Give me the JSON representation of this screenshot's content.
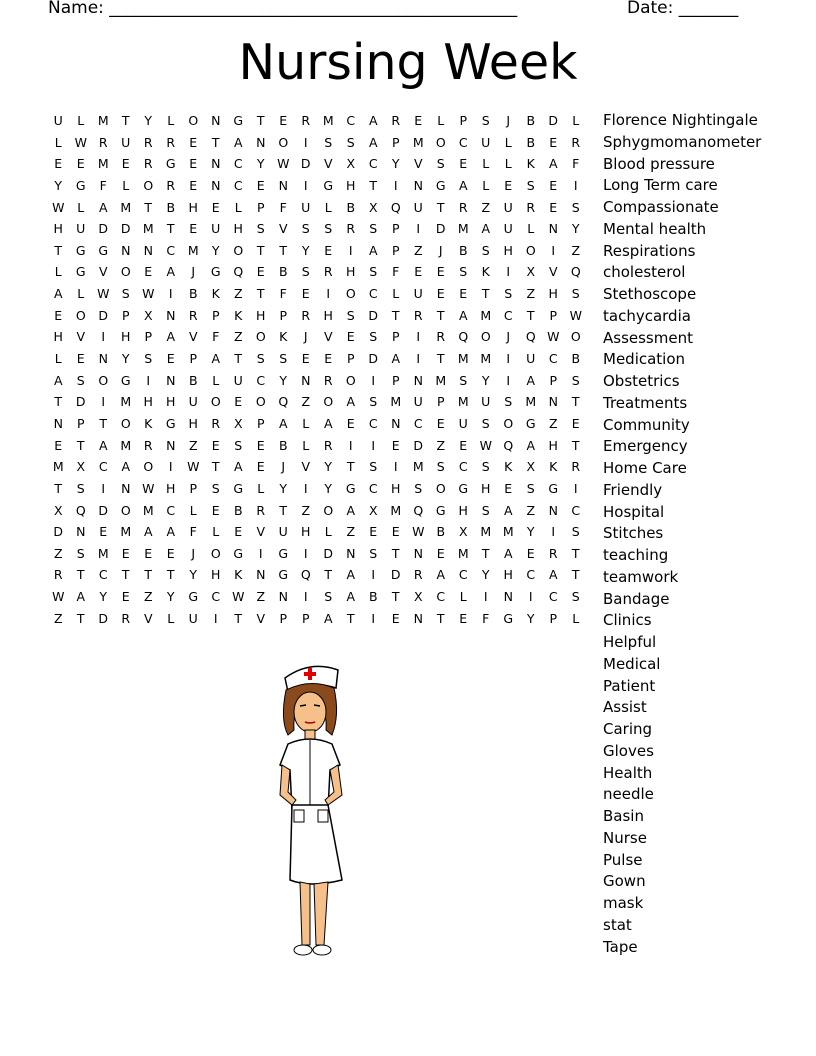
{
  "header": {
    "name_label": "Name: ________________________________________________",
    "date_label": "Date: _______"
  },
  "title": "Nursing Week",
  "grid": [
    "ULMTYLONGTERMCARELPSJBDL",
    "LWRURRETANOISSAPMOCULBER",
    "EEMERGENCYWDVXCYVSELLKAF",
    "YGFLORENCENIGHTINGALESEI",
    "WLAMTBHELPFULBXQUTRZURES",
    "HUDDMTEUHSVSSRSPIDMAULNY",
    "TGGNNCMYOTTYEIAPZJBSHOIZ",
    "LGVOEAJGQEBSRHSFEESKIXVQ",
    "ALWSWIBKZTFEIOCLUEETSZHS",
    "EODPXNRPKHPRHSDTRTAMCTPW",
    "HVIHPAVFZOKJVESPIRQOJQWO",
    "LENYSEPATSSEEPDAITMMIUCB",
    "ASOGINBLUCYNROIPNMSYIAPS",
    "TDIMHHUOEOQZOASMUPMUSMNT",
    "NPTOKGHRXPALAECNCEUSOGZE",
    "ETAMRNZESEBLRIIEDZEWQAHT",
    "MXCAOIWTAEJVYTSIMSCSKXKR",
    "TSINWHPSGLYIYGCHSOGHESGI",
    "XQDOMCLEBRTZOAXMQGHSAZNC",
    "DNEMAAFLEVUHLZEEWBXMMYIS",
    "ZSMEEEJOGIGIDNSTNEMTAERT",
    "RTCTTTYHKNGQTAIDRACYHCAT",
    "WAYEZYGCWZNISABTXCLINICS",
    "ZTDRVLUITVPPATIENTEFGYPL"
  ],
  "words": [
    "Florence Nightingale",
    "Sphygmomanometer",
    "Blood pressure",
    "Long Term care",
    "Compassionate",
    "Mental health",
    "Respirations",
    "cholesterol",
    "Stethoscope",
    "tachycardia",
    "Assessment",
    "Medication",
    "Obstetrics",
    "Treatments",
    "Community",
    "Emergency",
    "Home Care",
    "Friendly",
    "Hospital",
    "Stitches",
    "teaching",
    "teamwork",
    "Bandage",
    "Clinics",
    "Helpful",
    "Medical",
    "Patient",
    "Assist",
    "Caring",
    "Gloves",
    "Health",
    "needle",
    "Basin",
    "Nurse",
    "Pulse",
    "Gown",
    "mask",
    "stat",
    "Tape"
  ],
  "illustration": {
    "subject": "nurse-clipart",
    "cross_color": "#e00000",
    "hair_color": "#8b4a1c",
    "skin_color": "#f5c08a"
  }
}
